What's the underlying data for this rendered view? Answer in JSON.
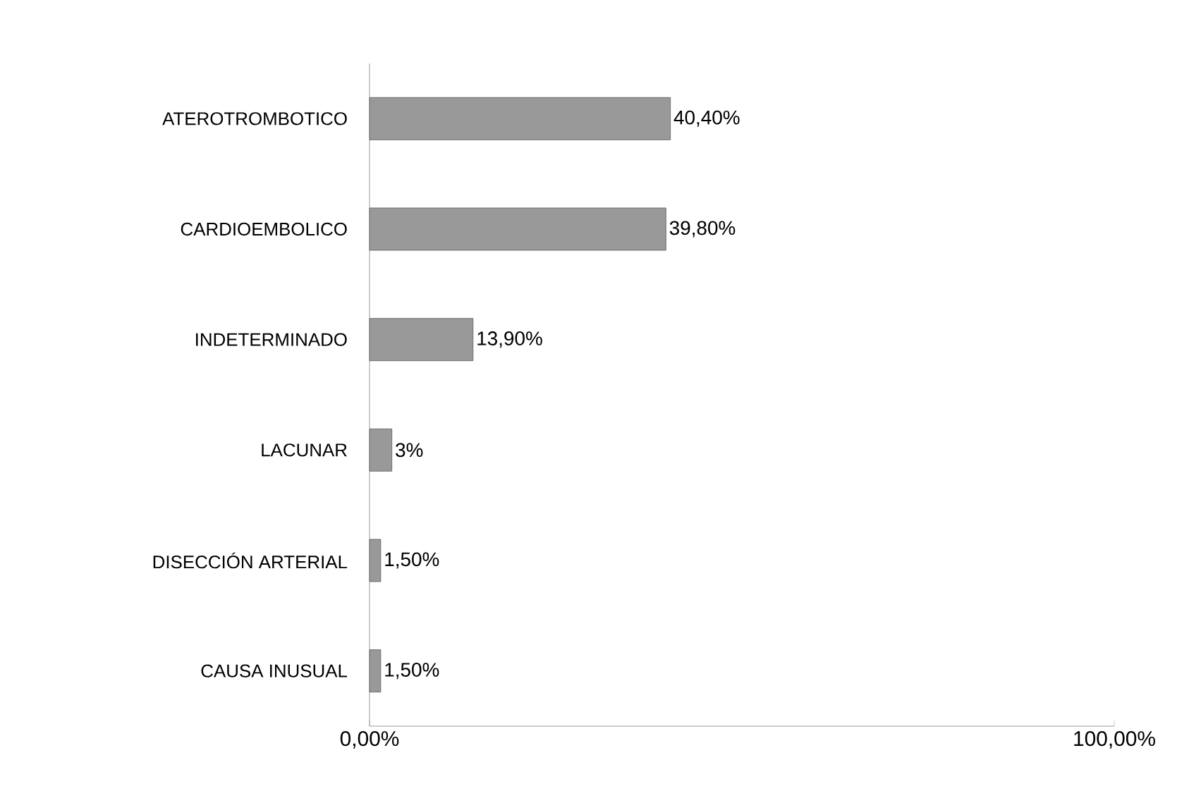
{
  "chart_data": {
    "type": "bar",
    "orientation": "horizontal",
    "categories": [
      "ATEROTROMBOTICO",
      "CARDIOEMBOLICO",
      "INDETERMINADO",
      "LACUNAR",
      "DISECCIÓN ARTERIAL",
      "CAUSA INUSUAL"
    ],
    "values": [
      40.4,
      39.8,
      13.9,
      3,
      1.5,
      1.5
    ],
    "value_labels": [
      "40,40%",
      "39,80%",
      "13,90%",
      "3%",
      "1,50%",
      "1,50%"
    ],
    "color": "#999999",
    "xlim": [
      0,
      100
    ],
    "xticks": [
      {
        "value": 0,
        "label": "0,00%"
      },
      {
        "value": 100,
        "label": "100,00%"
      }
    ],
    "grid": false
  }
}
